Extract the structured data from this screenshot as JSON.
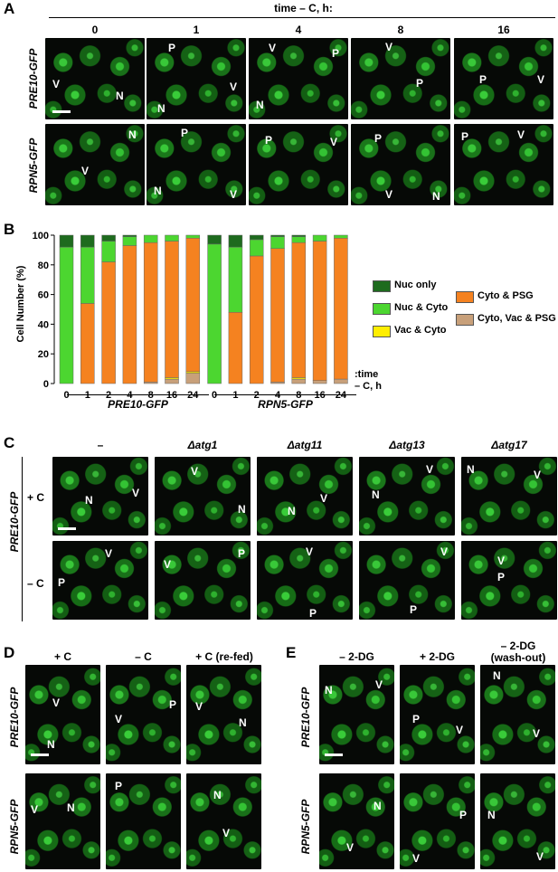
{
  "panel_letters": {
    "a": "A",
    "b": "B",
    "c": "C",
    "d": "D",
    "e": "E"
  },
  "A": {
    "header": "time – C, h:",
    "timepoints": [
      "0",
      "1",
      "4",
      "8",
      "16"
    ],
    "rows": [
      "PRE10-GFP",
      "RPN5-GFP"
    ],
    "labels": {
      "r0": [
        [
          "V",
          "N"
        ],
        [
          "P",
          "N",
          "V"
        ],
        [
          "V",
          "N",
          "P"
        ],
        [
          "V",
          "P"
        ],
        [
          "P",
          "V"
        ]
      ],
      "r1": [
        [
          "N",
          "V"
        ],
        [
          "P",
          "N",
          "V"
        ],
        [
          "P",
          "V"
        ],
        [
          "P",
          "V",
          "N"
        ],
        [
          "P",
          "V"
        ]
      ]
    }
  },
  "B": {
    "legend": [
      {
        "name": "Nuc only",
        "color": "#1e6b1e"
      },
      {
        "name": "Nuc & Cyto",
        "color": "#4cd630"
      },
      {
        "name": "Vac & Cyto",
        "color": "#ffee00"
      },
      {
        "name": "Cyto & PSG",
        "color": "#f58220"
      },
      {
        "name": "Cyto, Vac & PSG",
        "color": "#c8a07a"
      }
    ],
    "time_label_1": ":time",
    "time_label_2": "– C, h",
    "group1": "PRE10-GFP",
    "group2": "RPN5-GFP"
  },
  "chart_data": {
    "type": "bar",
    "stacked": true,
    "ylabel": "Cell Number (%)",
    "ylim": [
      0,
      100
    ],
    "yticks": [
      "0",
      "20",
      "40",
      "60",
      "80",
      "100"
    ],
    "categories": [
      "0",
      "1",
      "2",
      "4",
      "8",
      "16",
      "24",
      "0",
      "1",
      "2",
      "4",
      "8",
      "16",
      "24"
    ],
    "groups": [
      "PRE10-GFP",
      "RPN5-GFP"
    ],
    "series": [
      {
        "name": "Cyto, Vac & PSG",
        "color": "#c8a07a",
        "values": [
          0,
          0,
          0,
          0,
          1,
          3,
          7,
          0,
          0,
          0,
          1,
          3,
          2,
          3
        ]
      },
      {
        "name": "Vac & Cyto",
        "color": "#ffee00",
        "values": [
          0,
          0,
          0,
          0,
          0,
          1,
          1,
          0,
          0,
          0,
          0,
          1,
          0,
          0
        ]
      },
      {
        "name": "Cyto & PSG",
        "color": "#f58220",
        "values": [
          0,
          54,
          82,
          93,
          94,
          92,
          90,
          0,
          48,
          86,
          90,
          91,
          94,
          95
        ]
      },
      {
        "name": "Nuc & Cyto",
        "color": "#4cd630",
        "values": [
          92,
          38,
          14,
          6,
          5,
          4,
          2,
          94,
          44,
          11,
          8,
          4,
          4,
          2
        ]
      },
      {
        "name": "Nuc only",
        "color": "#1e6b1e",
        "values": [
          8,
          8,
          4,
          1,
          0,
          0,
          0,
          6,
          8,
          3,
          1,
          1,
          0,
          0
        ]
      }
    ]
  },
  "C": {
    "columns": [
      "–",
      "Δatg1",
      "Δatg11",
      "Δatg13",
      "Δatg17"
    ],
    "row_group": "PRE10-GFP",
    "rows": [
      "+ C",
      "– C"
    ]
  },
  "D": {
    "columns": [
      "+ C",
      "– C",
      "+ C (re-fed)"
    ],
    "rows": [
      "PRE10-GFP",
      "RPN5-GFP"
    ]
  },
  "E": {
    "columns": [
      "– 2-DG",
      "+ 2-DG",
      "– 2-DG\n(wash-out)"
    ],
    "col3_line1": "– 2-DG",
    "col3_line2": "(wash-out)",
    "rows": [
      "PRE10-GFP",
      "RPN5-GFP"
    ]
  }
}
